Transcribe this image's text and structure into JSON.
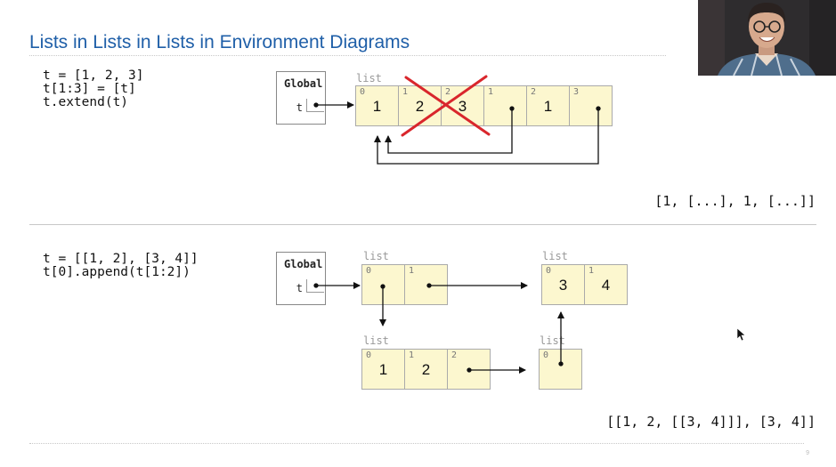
{
  "title": "Lists in Lists in Lists in Environment Diagrams",
  "top": {
    "code": [
      "t = [1, 2, 3]",
      "t[1:3] = [t]",
      "t.extend(t)"
    ],
    "frame": {
      "title": "Global",
      "var": "t"
    },
    "list_tag": "list",
    "cells": [
      {
        "index": "0",
        "value": "1"
      },
      {
        "index": "1",
        "value": "2"
      },
      {
        "index": "2",
        "value": "3"
      },
      {
        "index": "1",
        "value": ""
      },
      {
        "index": "2",
        "value": "1"
      },
      {
        "index": "3",
        "value": ""
      }
    ],
    "result": "[1, [...], 1, [...]]"
  },
  "bottom": {
    "code": [
      "t = [[1, 2], [3, 4]]",
      "t[0].append(t[1:2])"
    ],
    "frame": {
      "title": "Global",
      "var": "t"
    },
    "list_a": {
      "tag": "list",
      "cells": [
        {
          "index": "0",
          "value": ""
        },
        {
          "index": "1",
          "value": ""
        }
      ]
    },
    "list_b": {
      "tag": "list",
      "cells": [
        {
          "index": "0",
          "value": "3"
        },
        {
          "index": "1",
          "value": "4"
        }
      ]
    },
    "list_c": {
      "tag": "list",
      "cells": [
        {
          "index": "0",
          "value": "1"
        },
        {
          "index": "1",
          "value": "2"
        },
        {
          "index": "2",
          "value": ""
        }
      ]
    },
    "list_d": {
      "tag": "list",
      "cells": [
        {
          "index": "0",
          "value": ""
        }
      ]
    },
    "result": "[[1, 2, [[3, 4]]], [3, 4]]"
  },
  "page_number": "9",
  "colors": {
    "title": "#1f5fa8",
    "cell_fill": "#fcf7cf",
    "cross": "#d9262c"
  }
}
